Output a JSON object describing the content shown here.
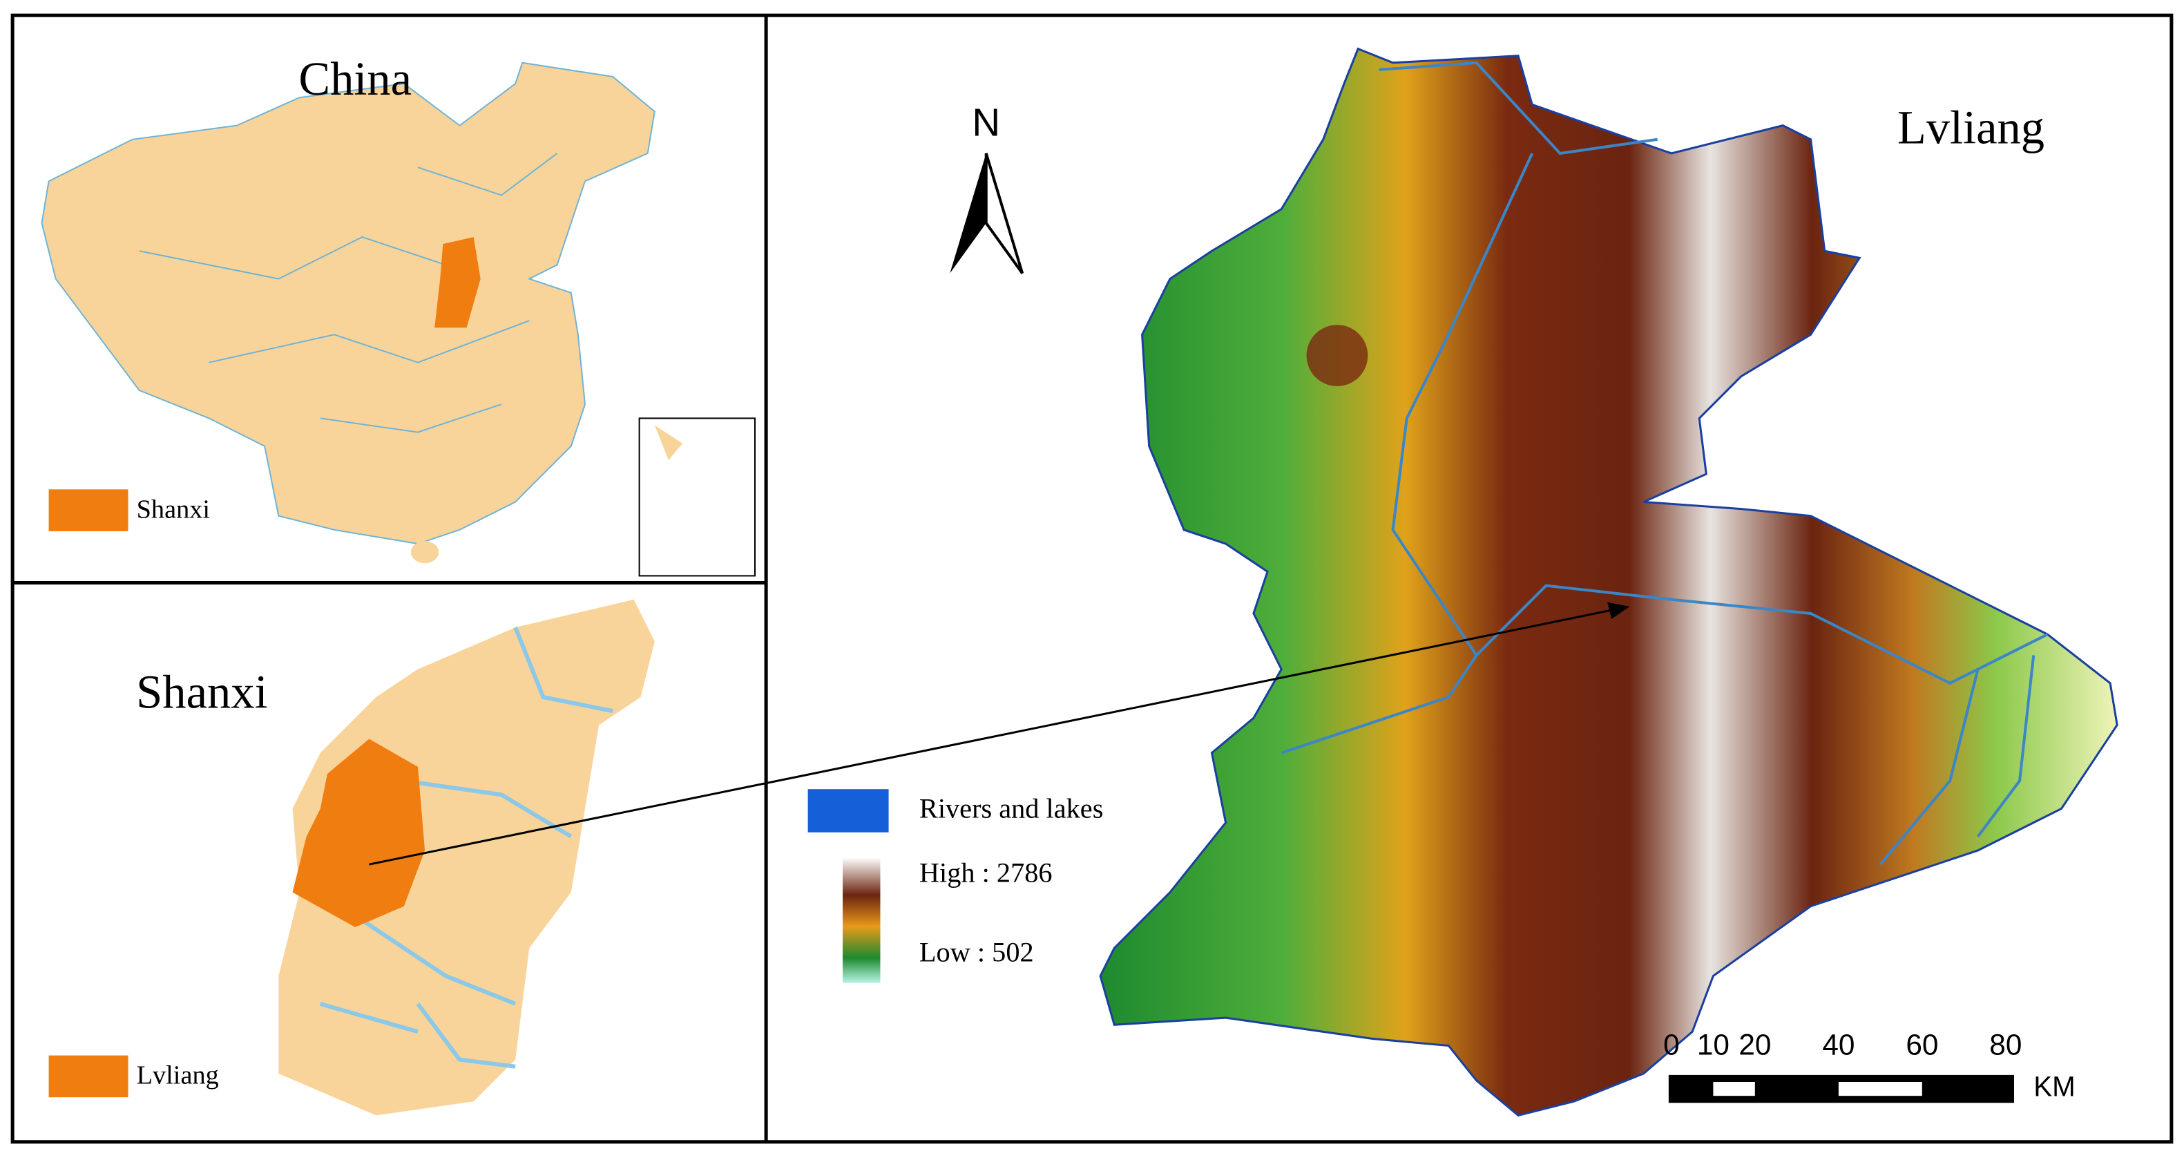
{
  "panels": {
    "china": {
      "title": "China",
      "legend": "Shanxi"
    },
    "shanxi": {
      "title": "Shanxi",
      "legend": "Lvliang"
    },
    "lvliang": {
      "title": "Lvliang",
      "north": "N",
      "legend": {
        "rivers": "Rivers and lakes",
        "high": "High : 2786",
        "low": "Low : 502"
      },
      "scale_bar": {
        "ticks": [
          0,
          10,
          20,
          40,
          60,
          80
        ],
        "unit": "KM"
      }
    }
  }
}
